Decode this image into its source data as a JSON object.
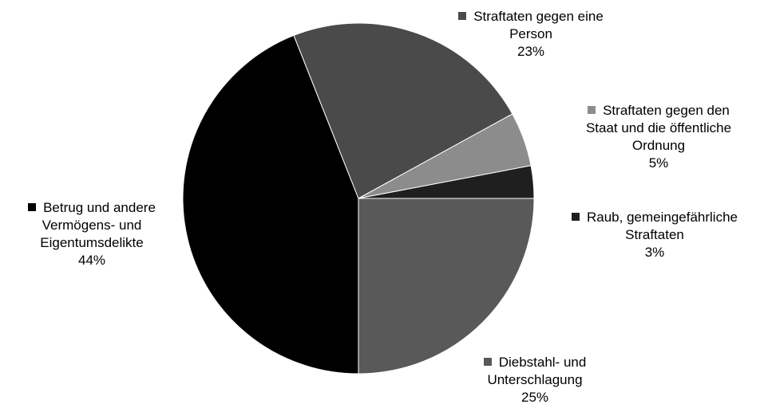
{
  "chart_data": {
    "type": "pie",
    "categories": [
      "Diebstahl- und Unterschlagung",
      "Betrug und andere Vermögens- und Eigentumsdelikte",
      "Straftaten gegen eine Person",
      "Straftaten gegen den Staat und die öffentliche Ordnung",
      "Raub, gemeingefährliche Straftaten"
    ],
    "values": [
      25,
      44,
      23,
      5,
      3
    ],
    "value_labels": [
      "25%",
      "44%",
      "23%",
      "5%",
      "3%"
    ],
    "colors": [
      "#595959",
      "#000000",
      "#4a4a4a",
      "#8c8c8c",
      "#1f1f1f"
    ]
  }
}
